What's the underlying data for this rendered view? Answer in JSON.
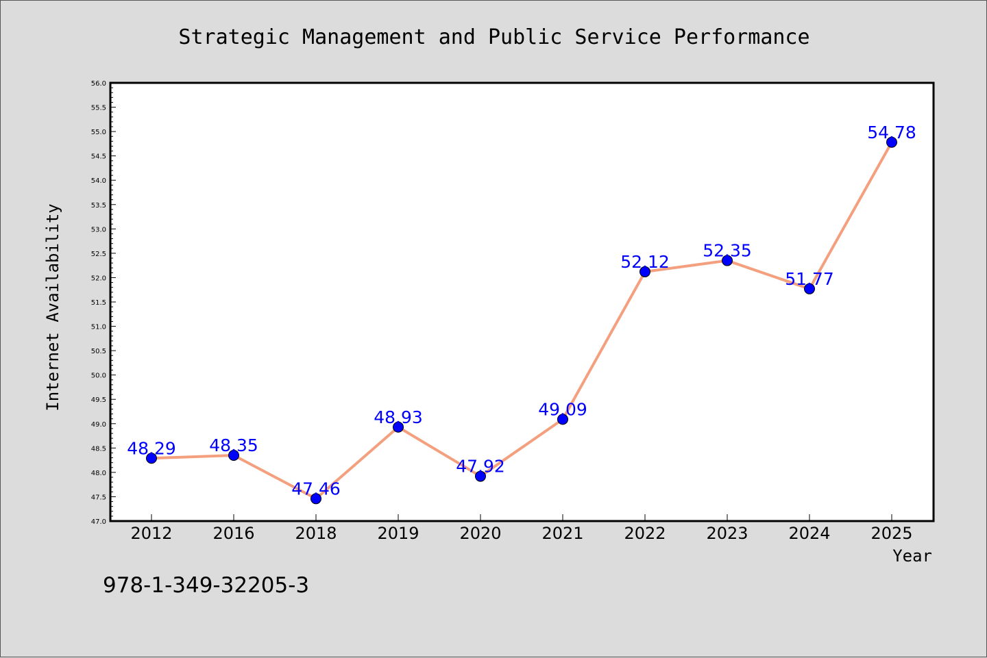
{
  "chart_data": {
    "type": "line",
    "title": "Strategic Management and Public Service Performance",
    "xlabel": "Year",
    "ylabel": "Internet Availability",
    "categories": [
      "2012",
      "2016",
      "2018",
      "2019",
      "2020",
      "2021",
      "2022",
      "2023",
      "2024",
      "2025"
    ],
    "series": [
      {
        "values": [
          48.29,
          48.35,
          47.46,
          48.93,
          47.92,
          49.09,
          52.12,
          52.35,
          51.77,
          54.78
        ],
        "data_labels": [
          "48.29",
          "48.35",
          "47.46",
          "48.93",
          "47.92",
          "49.09",
          "52.12",
          "52.35",
          "51.77",
          "54.78"
        ]
      }
    ],
    "ylim": [
      47.0,
      56.0
    ],
    "yticks": [
      "47.0",
      "47.5",
      "48.0",
      "48.5",
      "49.0",
      "49.5",
      "50.0",
      "50.5",
      "51.0",
      "51.5",
      "52.0",
      "52.5",
      "53.0",
      "53.5",
      "54.0",
      "54.5",
      "55.0",
      "55.5",
      "56.0"
    ],
    "grid": false,
    "line_color": "#f4a07f",
    "marker_color": "#0000ff",
    "label_color": "#0000ff",
    "plot_background": "#ffffff",
    "figure_background": "#dcdcdc"
  },
  "footer": {
    "isbn": "978-1-349-32205-3"
  }
}
